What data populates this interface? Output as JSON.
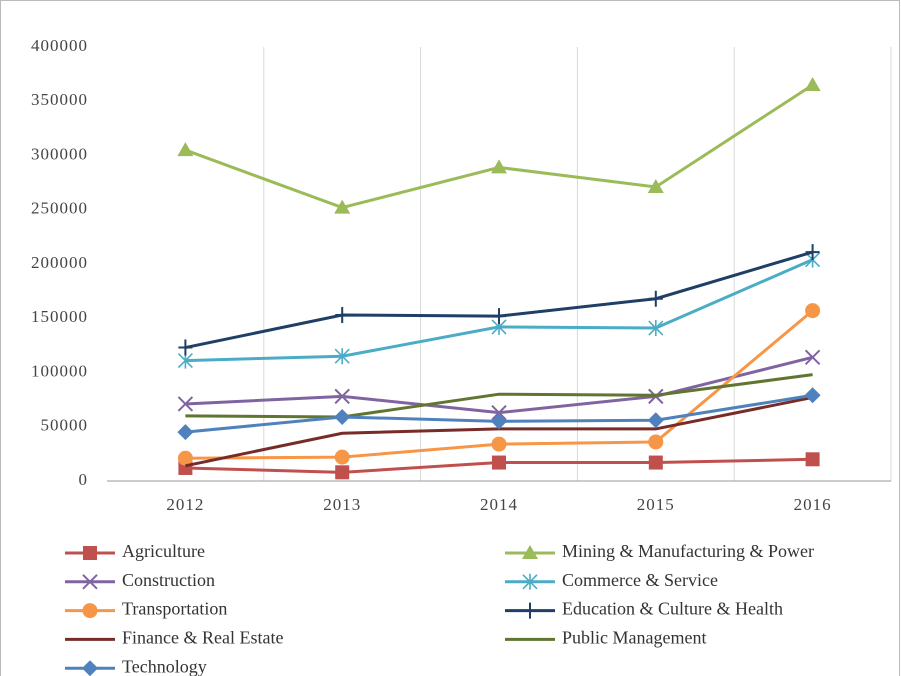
{
  "chart_data": {
    "type": "line",
    "categories": [
      "2012",
      "2013",
      "2014",
      "2015",
      "2016"
    ],
    "ylim": [
      0,
      400000
    ],
    "yticks": [
      0,
      50000,
      100000,
      150000,
      200000,
      250000,
      300000,
      350000,
      400000
    ],
    "grid": true,
    "legend": "bottom",
    "series": [
      {
        "name": "Agriculture",
        "color": "#c0504d",
        "marker": "square",
        "values": [
          12000,
          8000,
          17000,
          17000,
          20000
        ]
      },
      {
        "name": "Mining & Manufacturing & Power",
        "color": "#9bbb59",
        "marker": "triangle",
        "values": [
          305000,
          252000,
          289000,
          271000,
          365000
        ]
      },
      {
        "name": "Construction",
        "color": "#8064a2",
        "marker": "x",
        "values": [
          71000,
          78000,
          63000,
          78000,
          114000
        ]
      },
      {
        "name": "Commerce & Service",
        "color": "#4bacc6",
        "marker": "star",
        "values": [
          111000,
          115000,
          142000,
          141000,
          204000
        ]
      },
      {
        "name": "Transportation",
        "color": "#f79646",
        "marker": "circle",
        "values": [
          21000,
          22000,
          34000,
          36000,
          157000
        ]
      },
      {
        "name": "Education & Culture & Health",
        "color": "#1f3f66",
        "marker": "plus",
        "values": [
          123000,
          153000,
          152000,
          168000,
          211000
        ]
      },
      {
        "name": "Finance & Real Estate",
        "color": "#772c2a",
        "marker": "none",
        "values": [
          14000,
          44000,
          48000,
          48000,
          77000
        ]
      },
      {
        "name": "Public Management",
        "color": "#5f7530",
        "marker": "none",
        "values": [
          60000,
          59000,
          80000,
          79000,
          98000
        ]
      },
      {
        "name": "Technology",
        "color": "#4f81bd",
        "marker": "diamond",
        "values": [
          45000,
          59000,
          55000,
          56000,
          79000
        ]
      }
    ]
  }
}
